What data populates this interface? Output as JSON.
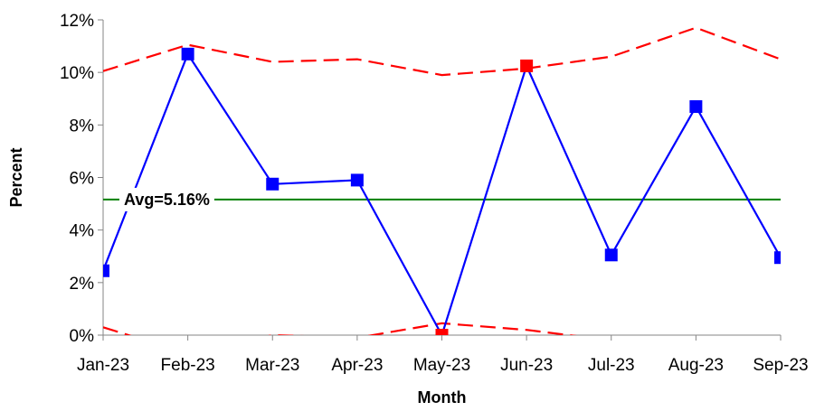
{
  "chart_data": {
    "type": "line",
    "title": "",
    "xlabel": "Month",
    "ylabel": "Percent",
    "categories": [
      "Jan-23",
      "Feb-23",
      "Mar-23",
      "Apr-23",
      "May-23",
      "Jun-23",
      "Jul-23",
      "Aug-23",
      "Sep-23"
    ],
    "ylim": [
      0,
      12
    ],
    "yticks": [
      "0%",
      "2%",
      "4%",
      "6%",
      "8%",
      "10%",
      "12%"
    ],
    "grid": false,
    "legend": "none",
    "series": [
      {
        "role": "data",
        "values": [
          2.45,
          10.7,
          5.75,
          5.9,
          0.0,
          10.25,
          3.05,
          8.7,
          2.95
        ],
        "color": "#0000ff",
        "out_of_control_indices": [
          4,
          5
        ],
        "out_of_control_color": "#ff0000"
      },
      {
        "role": "upper-control-limit",
        "values": [
          10.05,
          11.05,
          10.4,
          10.5,
          9.9,
          10.15,
          10.6,
          11.7,
          10.5
        ],
        "color": "#ff0000",
        "style": "dashed"
      },
      {
        "role": "lower-control-limit",
        "values": [
          0.3,
          -0.7,
          0.0,
          -0.1,
          0.45,
          0.2,
          -0.2,
          -1.3,
          -0.1
        ],
        "color": "#ff0000",
        "style": "dashed"
      },
      {
        "role": "average",
        "value": 5.16,
        "color": "#008000",
        "label": "Avg=5.16%"
      }
    ]
  }
}
